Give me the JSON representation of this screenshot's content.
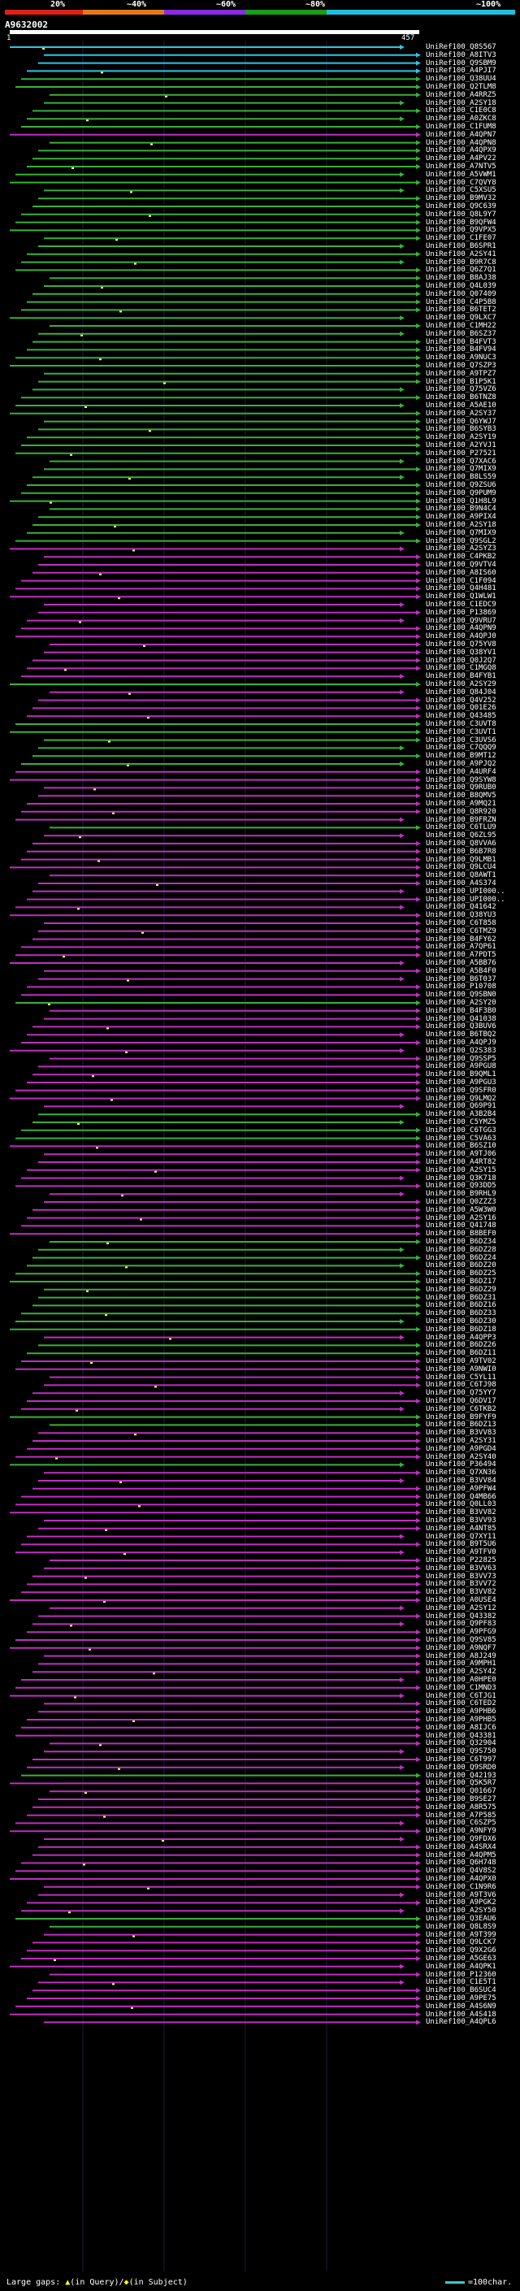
{
  "scale": {
    "ticks": [
      "20%",
      "~40%",
      "~60%",
      "~80%",
      "~100%"
    ],
    "colors": [
      "#e0201b",
      "#e07a1a",
      "#8a2be2",
      "#1a9e1a",
      "#1ec0e0"
    ]
  },
  "query": {
    "name": "A9632002",
    "start": "1",
    "end": "457"
  },
  "hits": [
    {
      "id": "UniRef100_Q8S567",
      "color": "#2ec6e6"
    },
    {
      "id": "UniRef100_A8ITV3",
      "color": "#2ec6e6"
    },
    {
      "id": "UniRef100_Q9SBM9",
      "color": "#2ec6e6"
    },
    {
      "id": "UniRef100_A4PJI7",
      "color": "#2ec6e6"
    },
    {
      "id": "UniRef100_Q38UU4",
      "color": "#39b039"
    },
    {
      "id": "UniRef100_Q2TLM8",
      "color": "#39b039"
    },
    {
      "id": "UniRef100_A4RRZ5",
      "color": "#39b039"
    },
    {
      "id": "UniRef100_A2SY18",
      "color": "#39b039"
    },
    {
      "id": "UniRef100_C1E0C8",
      "color": "#39b039"
    },
    {
      "id": "UniRef100_A0ZKC8",
      "color": "#39b039"
    },
    {
      "id": "UniRef100_C1FUM8",
      "color": "#39b039"
    },
    {
      "id": "UniRef100_A4QPN7",
      "color": "#c02ec0"
    },
    {
      "id": "UniRef100_A4QPN8",
      "color": "#39b039"
    },
    {
      "id": "UniRef100_A4QPX9",
      "color": "#39b039"
    },
    {
      "id": "UniRef100_A4PV22",
      "color": "#39b039"
    },
    {
      "id": "UniRef100_A7NTV5",
      "color": "#39b039"
    },
    {
      "id": "UniRef100_A5VWM1",
      "color": "#39b039"
    },
    {
      "id": "UniRef100_C7QVY8",
      "color": "#39b039"
    },
    {
      "id": "UniRef100_C5XSU5",
      "color": "#39b039"
    },
    {
      "id": "UniRef100_B9MV32",
      "color": "#39b039"
    },
    {
      "id": "UniRef100_Q9C639",
      "color": "#39b039"
    },
    {
      "id": "UniRef100_Q8L9Y7",
      "color": "#39b039"
    },
    {
      "id": "UniRef100_B9QFW4",
      "color": "#39b039"
    },
    {
      "id": "UniRef100_Q9VPX5",
      "color": "#39b039"
    },
    {
      "id": "UniRef100_C1FE07",
      "color": "#39b039"
    },
    {
      "id": "UniRef100_B6SPR1",
      "color": "#39b039"
    },
    {
      "id": "UniRef100_A2SY41",
      "color": "#39b039"
    },
    {
      "id": "UniRef100_B9R7C8",
      "color": "#39b039"
    },
    {
      "id": "UniRef100_Q6Z7Q1",
      "color": "#39b039"
    },
    {
      "id": "UniRef100_B8AJ38",
      "color": "#39b039"
    },
    {
      "id": "UniRef100_Q4L039",
      "color": "#39b039"
    },
    {
      "id": "UniRef100_Q07409",
      "color": "#39b039"
    },
    {
      "id": "UniRef100_C4P5B8",
      "color": "#39b039"
    },
    {
      "id": "UniRef100_B6TET2",
      "color": "#39b039"
    },
    {
      "id": "UniRef100_Q9LXC7",
      "color": "#39b039"
    },
    {
      "id": "UniRef100_C1MH22",
      "color": "#39b039"
    },
    {
      "id": "UniRef100_B6SZ37",
      "color": "#39b039"
    },
    {
      "id": "UniRef100_B4FVT3",
      "color": "#39b039"
    },
    {
      "id": "UniRef100_B4FV94",
      "color": "#39b039"
    },
    {
      "id": "UniRef100_A9NUC3",
      "color": "#39b039"
    },
    {
      "id": "UniRef100_Q7SZP3",
      "color": "#39b039"
    },
    {
      "id": "UniRef100_A9TPZ7",
      "color": "#39b039"
    },
    {
      "id": "UniRef100_B1P5K1",
      "color": "#39b039"
    },
    {
      "id": "UniRef100_Q75VZ6",
      "color": "#39b039"
    },
    {
      "id": "UniRef100_B6TNZ8",
      "color": "#39b039"
    },
    {
      "id": "UniRef100_A5AE10",
      "color": "#39b039"
    },
    {
      "id": "UniRef100_A2SY37",
      "color": "#39b039"
    },
    {
      "id": "UniRef100_Q6YWJ7",
      "color": "#39b039"
    },
    {
      "id": "UniRef100_B6SYB3",
      "color": "#39b039"
    },
    {
      "id": "UniRef100_A2SY19",
      "color": "#39b039"
    },
    {
      "id": "UniRef100_A2YVJ1",
      "color": "#39b039"
    },
    {
      "id": "UniRef100_P27521",
      "color": "#39b039"
    },
    {
      "id": "UniRef100_Q7XAC6",
      "color": "#39b039"
    },
    {
      "id": "UniRef100_Q7MIX9",
      "color": "#39b039"
    },
    {
      "id": "UniRef100_B8LS59",
      "color": "#39b039"
    },
    {
      "id": "UniRef100_Q9ZSU6",
      "color": "#39b039"
    },
    {
      "id": "UniRef100_Q9PUM9",
      "color": "#39b039"
    },
    {
      "id": "UniRef100_Q1H8L9",
      "color": "#39b039"
    },
    {
      "id": "UniRef100_B9N4C4",
      "color": "#39b039"
    },
    {
      "id": "UniRef100_A9PIX4",
      "color": "#39b039"
    },
    {
      "id": "UniRef100_A2SY18",
      "color": "#39b039"
    },
    {
      "id": "UniRef100_Q7MIX9",
      "color": "#39b039"
    },
    {
      "id": "UniRef100_Q9SGL2",
      "color": "#39b039"
    },
    {
      "id": "UniRef100_A2SYZ3",
      "color": "#c02ec0"
    },
    {
      "id": "UniRef100_C4PKB2",
      "color": "#c02ec0"
    },
    {
      "id": "UniRef100_Q9VTV4",
      "color": "#c02ec0"
    },
    {
      "id": "UniRef100_A8IS60",
      "color": "#c02ec0"
    },
    {
      "id": "UniRef100_C1F094",
      "color": "#c02ec0"
    },
    {
      "id": "UniRef100_Q4H481",
      "color": "#c02ec0"
    },
    {
      "id": "UniRef100_Q1WLW1",
      "color": "#c02ec0"
    },
    {
      "id": "UniRef100_C1EDC9",
      "color": "#c02ec0"
    },
    {
      "id": "UniRef100_P13869",
      "color": "#c02ec0"
    },
    {
      "id": "UniRef100_Q9VRU7",
      "color": "#c02ec0"
    },
    {
      "id": "UniRef100_A4QPN9",
      "color": "#c02ec0"
    },
    {
      "id": "UniRef100_A4QPJ0",
      "color": "#c02ec0"
    },
    {
      "id": "UniRef100_Q75YV8",
      "color": "#c02ec0"
    },
    {
      "id": "UniRef100_Q38YV1",
      "color": "#c02ec0"
    },
    {
      "id": "UniRef100_Q0J2Q7",
      "color": "#c02ec0"
    },
    {
      "id": "UniRef100_C1MGQ8",
      "color": "#c02ec0"
    },
    {
      "id": "UniRef100_B4FYB1",
      "color": "#c02ec0"
    },
    {
      "id": "UniRef100_A2SY29",
      "color": "#39b039"
    },
    {
      "id": "UniRef100_Q84J04",
      "color": "#c02ec0"
    },
    {
      "id": "UniRef100_Q4V252",
      "color": "#c02ec0"
    },
    {
      "id": "UniRef100_Q01E26",
      "color": "#c02ec0"
    },
    {
      "id": "UniRef100_Q43485",
      "color": "#c02ec0"
    },
    {
      "id": "UniRef100_C3UVT8",
      "color": "#39b039"
    },
    {
      "id": "UniRef100_C3UVT1",
      "color": "#39b039"
    },
    {
      "id": "UniRef100_C3UVS6",
      "color": "#39b039"
    },
    {
      "id": "UniRef100_C7QQQ9",
      "color": "#39b039"
    },
    {
      "id": "UniRef100_B9MT12",
      "color": "#39b039"
    },
    {
      "id": "UniRef100_A9PJQ2",
      "color": "#39b039"
    },
    {
      "id": "UniRef100_A4URF4",
      "color": "#c02ec0"
    },
    {
      "id": "UniRef100_Q9SYW8",
      "color": "#c02ec0"
    },
    {
      "id": "UniRef100_Q9RUB0",
      "color": "#c02ec0"
    },
    {
      "id": "UniRef100_B8QMV5",
      "color": "#c02ec0"
    },
    {
      "id": "UniRef100_A9MQ21",
      "color": "#c02ec0"
    },
    {
      "id": "UniRef100_Q8R920",
      "color": "#c02ec0"
    },
    {
      "id": "UniRef100_B9FRZN",
      "color": "#c02ec0"
    },
    {
      "id": "UniRef100_C6TLU9",
      "color": "#39b039"
    },
    {
      "id": "UniRef100_Q6ZL95",
      "color": "#c02ec0"
    },
    {
      "id": "UniRef100_Q8VVA6",
      "color": "#c02ec0"
    },
    {
      "id": "UniRef100_B6B7R8",
      "color": "#c02ec0"
    },
    {
      "id": "UniRef100_Q9LMB1",
      "color": "#c02ec0"
    },
    {
      "id": "UniRef100_Q9LCU4",
      "color": "#c02ec0"
    },
    {
      "id": "UniRef100_Q8AWT1",
      "color": "#c02ec0"
    },
    {
      "id": "UniRef100_A4S374",
      "color": "#c02ec0"
    },
    {
      "id": "UniRef100_UPI000..",
      "color": "#c02ec0"
    },
    {
      "id": "UniRef100_UPI000..",
      "color": "#c02ec0"
    },
    {
      "id": "UniRef100_Q41642",
      "color": "#c02ec0"
    },
    {
      "id": "UniRef100_Q38YU3",
      "color": "#c02ec0"
    },
    {
      "id": "UniRef100_C6T858",
      "color": "#c02ec0"
    },
    {
      "id": "UniRef100_C6TMZ9",
      "color": "#c02ec0"
    },
    {
      "id": "UniRef100_B4FY62",
      "color": "#c02ec0"
    },
    {
      "id": "UniRef100_A7QP61",
      "color": "#c02ec0"
    },
    {
      "id": "UniRef100_A7PDT5",
      "color": "#c02ec0"
    },
    {
      "id": "UniRef100_A5BB76",
      "color": "#c02ec0"
    },
    {
      "id": "UniRef100_A5B4F0",
      "color": "#c02ec0"
    },
    {
      "id": "UniRef100_B6T037",
      "color": "#c02ec0"
    },
    {
      "id": "UniRef100_P10708",
      "color": "#c02ec0"
    },
    {
      "id": "UniRef100_Q9SBN0",
      "color": "#c02ec0"
    },
    {
      "id": "UniRef100_A2SY20",
      "color": "#39b039"
    },
    {
      "id": "UniRef100_B4F3B0",
      "color": "#c02ec0"
    },
    {
      "id": "UniRef100_Q41038",
      "color": "#c02ec0"
    },
    {
      "id": "UniRef100_Q3BUV6",
      "color": "#c02ec0"
    },
    {
      "id": "UniRef100_B6TBQ2",
      "color": "#c02ec0"
    },
    {
      "id": "UniRef100_A4QPJ9",
      "color": "#c02ec0"
    },
    {
      "id": "UniRef100_Q2S383",
      "color": "#c02ec0"
    },
    {
      "id": "UniRef100_Q9SSP5",
      "color": "#c02ec0"
    },
    {
      "id": "UniRef100_A9PGU8",
      "color": "#c02ec0"
    },
    {
      "id": "UniRef100_B9QML1",
      "color": "#c02ec0"
    },
    {
      "id": "UniRef100_A9PGU3",
      "color": "#c02ec0"
    },
    {
      "id": "UniRef100_Q9SFR0",
      "color": "#c02ec0"
    },
    {
      "id": "UniRef100_Q9LMQ2",
      "color": "#c02ec0"
    },
    {
      "id": "UniRef100_Q69P91",
      "color": "#c02ec0"
    },
    {
      "id": "UniRef100_A3B2B4",
      "color": "#39b039"
    },
    {
      "id": "UniRef100_C5YMZ5",
      "color": "#39b039"
    },
    {
      "id": "UniRef100_C6TGG3",
      "color": "#39b039"
    },
    {
      "id": "UniRef100_C5VA63",
      "color": "#39b039"
    },
    {
      "id": "UniRef100_B6SZ10",
      "color": "#c02ec0"
    },
    {
      "id": "UniRef100_A9TJ06",
      "color": "#c02ec0"
    },
    {
      "id": "UniRef100_A4RT82",
      "color": "#c02ec0"
    },
    {
      "id": "UniRef100_A2SY15",
      "color": "#c02ec0"
    },
    {
      "id": "UniRef100_Q3K718",
      "color": "#c02ec0"
    },
    {
      "id": "UniRef100_Q93DD5",
      "color": "#c02ec0"
    },
    {
      "id": "UniRef100_B9RHL9",
      "color": "#c02ec0"
    },
    {
      "id": "UniRef100_Q0ZZZ3",
      "color": "#c02ec0"
    },
    {
      "id": "UniRef100_A5W3W0",
      "color": "#c02ec0"
    },
    {
      "id": "UniRef100_A2SY16",
      "color": "#c02ec0"
    },
    {
      "id": "UniRef100_Q41748",
      "color": "#c02ec0"
    },
    {
      "id": "UniRef100_B8BEF0",
      "color": "#c02ec0"
    },
    {
      "id": "UniRef100_B6DZ34",
      "color": "#39b039"
    },
    {
      "id": "UniRef100_B6DZ28",
      "color": "#39b039"
    },
    {
      "id": "UniRef100_B6DZ24",
      "color": "#39b039"
    },
    {
      "id": "UniRef100_B6DZ20",
      "color": "#39b039"
    },
    {
      "id": "UniRef100_B6DZ25",
      "color": "#39b039"
    },
    {
      "id": "UniRef100_B6DZ17",
      "color": "#39b039"
    },
    {
      "id": "UniRef100_B6DZ29",
      "color": "#39b039"
    },
    {
      "id": "UniRef100_B6DZ31",
      "color": "#39b039"
    },
    {
      "id": "UniRef100_B6DZ16",
      "color": "#39b039"
    },
    {
      "id": "UniRef100_B6DZ33",
      "color": "#39b039"
    },
    {
      "id": "UniRef100_B6DZ30",
      "color": "#39b039"
    },
    {
      "id": "UniRef100_B6DZ18",
      "color": "#39b039"
    },
    {
      "id": "UniRef100_A4QPP3",
      "color": "#c02ec0"
    },
    {
      "id": "UniRef100_B6DZ26",
      "color": "#39b039"
    },
    {
      "id": "UniRef100_B6DZ11",
      "color": "#39b039"
    },
    {
      "id": "UniRef100_A9TV02",
      "color": "#c02ec0"
    },
    {
      "id": "UniRef100_A9NWI0",
      "color": "#c02ec0"
    },
    {
      "id": "UniRef100_C5YL11",
      "color": "#c02ec0"
    },
    {
      "id": "UniRef100_C6TJ98",
      "color": "#c02ec0"
    },
    {
      "id": "UniRef100_Q75YY7",
      "color": "#c02ec0"
    },
    {
      "id": "UniRef100_Q6DV17",
      "color": "#c02ec0"
    },
    {
      "id": "UniRef100_C6TKB2",
      "color": "#c02ec0"
    },
    {
      "id": "UniRef100_B9FYF9",
      "color": "#39b039"
    },
    {
      "id": "UniRef100_B6DZ13",
      "color": "#39b039"
    },
    {
      "id": "UniRef100_B3VV83",
      "color": "#c02ec0"
    },
    {
      "id": "UniRef100_A2SY31",
      "color": "#c02ec0"
    },
    {
      "id": "UniRef100_A9PGD4",
      "color": "#c02ec0"
    },
    {
      "id": "UniRef100_A2SY40",
      "color": "#c02ec0"
    },
    {
      "id": "UniRef100_P36494",
      "color": "#39b039"
    },
    {
      "id": "UniRef100_Q7XN36",
      "color": "#c02ec0"
    },
    {
      "id": "UniRef100_B3VV84",
      "color": "#c02ec0"
    },
    {
      "id": "UniRef100_A9PFW4",
      "color": "#c02ec0"
    },
    {
      "id": "UniRef100_Q4MB66",
      "color": "#c02ec0"
    },
    {
      "id": "UniRef100_Q0LL03",
      "color": "#c02ec0"
    },
    {
      "id": "UniRef100_B3VV82",
      "color": "#c02ec0"
    },
    {
      "id": "UniRef100_B3VV93",
      "color": "#c02ec0"
    },
    {
      "id": "UniRef100_A4NT85",
      "color": "#c02ec0"
    },
    {
      "id": "UniRef100_Q7XY11",
      "color": "#c02ec0"
    },
    {
      "id": "UniRef100_B9T5U6",
      "color": "#c02ec0"
    },
    {
      "id": "UniRef100_A9TFV0",
      "color": "#c02ec0"
    },
    {
      "id": "UniRef100_P22825",
      "color": "#c02ec0"
    },
    {
      "id": "UniRef100_B3VV63",
      "color": "#c02ec0"
    },
    {
      "id": "UniRef100_B3VV73",
      "color": "#c02ec0"
    },
    {
      "id": "UniRef100_B3VV72",
      "color": "#c02ec0"
    },
    {
      "id": "UniRef100_B3VV82",
      "color": "#c02ec0"
    },
    {
      "id": "UniRef100_A0USE4",
      "color": "#c02ec0"
    },
    {
      "id": "UniRef100_A2SY12",
      "color": "#c02ec0"
    },
    {
      "id": "UniRef100_Q43382",
      "color": "#c02ec0"
    },
    {
      "id": "UniRef100_Q9PF83",
      "color": "#c02ec0"
    },
    {
      "id": "UniRef100_A9PFG9",
      "color": "#c02ec0"
    },
    {
      "id": "UniRef100_Q9SV85",
      "color": "#c02ec0"
    },
    {
      "id": "UniRef100_A9NQF7",
      "color": "#c02ec0"
    },
    {
      "id": "UniRef100_A8J249",
      "color": "#c02ec0"
    },
    {
      "id": "UniRef100_A9MPH1",
      "color": "#c02ec0"
    },
    {
      "id": "UniRef100_A2SY42",
      "color": "#c02ec0"
    },
    {
      "id": "UniRef100_A0HPE0",
      "color": "#c02ec0"
    },
    {
      "id": "UniRef100_C1MND3",
      "color": "#c02ec0"
    },
    {
      "id": "UniRef100_C6TJG1",
      "color": "#c02ec0"
    },
    {
      "id": "UniRef100_C6TED2",
      "color": "#c02ec0"
    },
    {
      "id": "UniRef100_A9PHB6",
      "color": "#c02ec0"
    },
    {
      "id": "UniRef100_A9PHB5",
      "color": "#c02ec0"
    },
    {
      "id": "UniRef100_A8IJC6",
      "color": "#c02ec0"
    },
    {
      "id": "UniRef100_Q43381",
      "color": "#c02ec0"
    },
    {
      "id": "UniRef100_Q32904",
      "color": "#c02ec0"
    },
    {
      "id": "UniRef100_Q9S750",
      "color": "#c02ec0"
    },
    {
      "id": "UniRef100_C6T997",
      "color": "#c02ec0"
    },
    {
      "id": "UniRef100_Q9SRD0",
      "color": "#c02ec0"
    },
    {
      "id": "UniRef100_Q42193",
      "color": "#39b039"
    },
    {
      "id": "UniRef100_Q5K5R7",
      "color": "#c02ec0"
    },
    {
      "id": "UniRef100_Q01667",
      "color": "#c02ec0"
    },
    {
      "id": "UniRef100_B9SE27",
      "color": "#c02ec0"
    },
    {
      "id": "UniRef100_A8R575",
      "color": "#c02ec0"
    },
    {
      "id": "UniRef100_A7P585",
      "color": "#c02ec0"
    },
    {
      "id": "UniRef100_C6SZP5",
      "color": "#c02ec0"
    },
    {
      "id": "UniRef100_A9NFY9",
      "color": "#c02ec0"
    },
    {
      "id": "UniRef100_Q9FDX6",
      "color": "#c02ec0"
    },
    {
      "id": "UniRef100_A4SRX4",
      "color": "#c02ec0"
    },
    {
      "id": "UniRef100_A4QPM5",
      "color": "#c02ec0"
    },
    {
      "id": "UniRef100_Q6H748",
      "color": "#c02ec0"
    },
    {
      "id": "UniRef100_Q4V8S2",
      "color": "#c02ec0"
    },
    {
      "id": "UniRef100_A4QPX0",
      "color": "#c02ec0"
    },
    {
      "id": "UniRef100_C1N9R6",
      "color": "#c02ec0"
    },
    {
      "id": "UniRef100_A9T3V6",
      "color": "#c02ec0"
    },
    {
      "id": "UniRef100_A9PGK2",
      "color": "#c02ec0"
    },
    {
      "id": "UniRef100_A2SY50",
      "color": "#c02ec0"
    },
    {
      "id": "UniRef100_Q3EAU6",
      "color": "#39b039"
    },
    {
      "id": "UniRef100_Q8L8S9",
      "color": "#39b039"
    },
    {
      "id": "UniRef100_A9T399",
      "color": "#c02ec0"
    },
    {
      "id": "UniRef100_Q9LCK7",
      "color": "#c02ec0"
    },
    {
      "id": "UniRef100_Q9X2G6",
      "color": "#c02ec0"
    },
    {
      "id": "UniRef100_A5GE63",
      "color": "#c02ec0"
    },
    {
      "id": "UniRef100_A4QPK1",
      "color": "#c02ec0"
    },
    {
      "id": "UniRef100_P12360",
      "color": "#c02ec0"
    },
    {
      "id": "UniRef100_C1E5T1",
      "color": "#c02ec0"
    },
    {
      "id": "UniRef100_B6SUC4",
      "color": "#c02ec0"
    },
    {
      "id": "UniRef100_A9PE75",
      "color": "#c02ec0"
    },
    {
      "id": "UniRef100_A4S6N9",
      "color": "#c02ec0"
    },
    {
      "id": "UniRef100_A4S418",
      "color": "#c02ec0"
    },
    {
      "id": "UniRef100_A4QPL6",
      "color": "#c02ec0"
    }
  ],
  "footer": {
    "prefix": "Large gaps:",
    "query_part": "(in Query)/",
    "subject_part": "(in Subject)",
    "legend": "=100char."
  }
}
